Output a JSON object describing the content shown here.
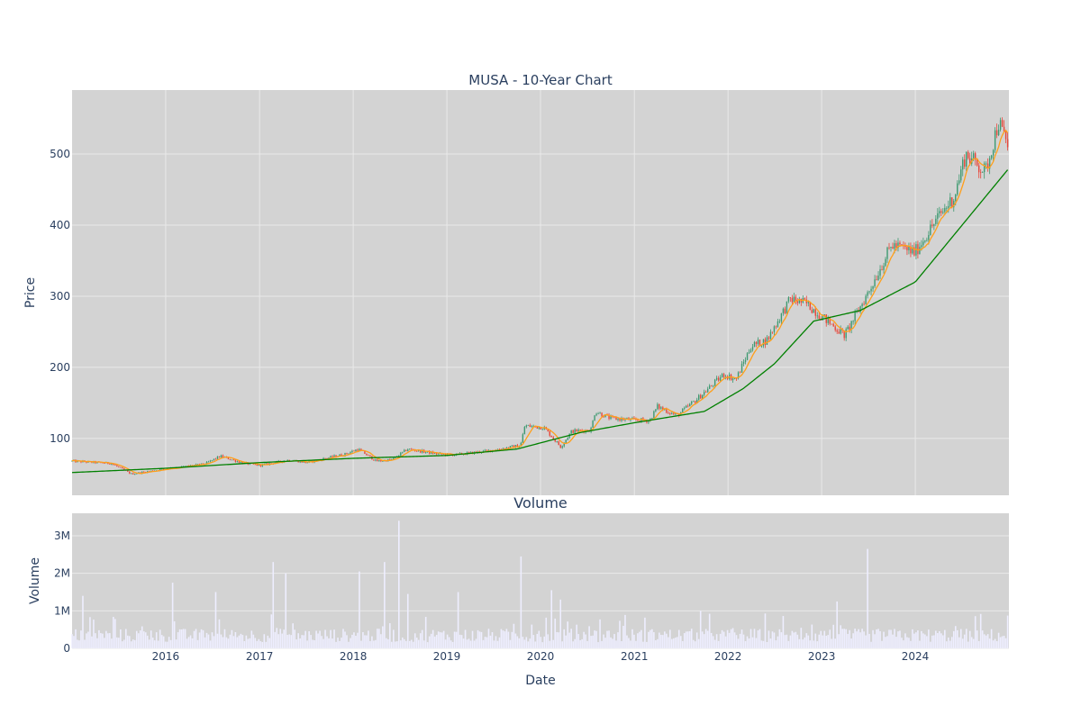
{
  "chart_data": [
    {
      "type": "candlestick",
      "title": "MUSA - 10-Year Chart",
      "xlabel": "",
      "ylabel": "Price",
      "x_range": [
        "2015-01-01",
        "2024-12-31"
      ],
      "ylim": [
        20,
        590
      ],
      "y_ticks": [
        100,
        200,
        300,
        400,
        500
      ],
      "x_ticks": [
        "2016",
        "2017",
        "2018",
        "2019",
        "2020",
        "2021",
        "2022",
        "2023",
        "2024"
      ],
      "grid": true,
      "legend": "none",
      "colors": {
        "plot_bg": "#d3d3d3",
        "grid": "#e9e9e9",
        "increasing": "#3d9970",
        "decreasing": "#e8463a",
        "ma_short": "#ff9f1a",
        "ma_long": "#008000"
      },
      "price_anchors": [
        [
          "2015-01-01",
          68
        ],
        [
          "2015-06-01",
          65
        ],
        [
          "2015-08-20",
          50
        ],
        [
          "2016-01-15",
          58
        ],
        [
          "2016-06-01",
          64
        ],
        [
          "2016-08-01",
          75
        ],
        [
          "2016-11-01",
          65
        ],
        [
          "2017-01-01",
          62
        ],
        [
          "2017-05-01",
          70
        ],
        [
          "2017-07-01",
          66
        ],
        [
          "2017-12-01",
          78
        ],
        [
          "2018-01-20",
          85
        ],
        [
          "2018-04-01",
          68
        ],
        [
          "2018-06-01",
          70
        ],
        [
          "2018-08-01",
          85
        ],
        [
          "2018-12-01",
          78
        ],
        [
          "2019-02-01",
          77
        ],
        [
          "2019-06-01",
          82
        ],
        [
          "2019-10-15",
          90
        ],
        [
          "2019-11-01",
          118
        ],
        [
          "2020-01-15",
          115
        ],
        [
          "2020-03-20",
          88
        ],
        [
          "2020-05-01",
          110
        ],
        [
          "2020-07-15",
          112
        ],
        [
          "2020-08-01",
          138
        ],
        [
          "2020-10-01",
          128
        ],
        [
          "2021-01-01",
          126
        ],
        [
          "2021-03-01",
          125
        ],
        [
          "2021-04-01",
          145
        ],
        [
          "2021-06-15",
          132
        ],
        [
          "2021-09-01",
          155
        ],
        [
          "2021-12-15",
          190
        ],
        [
          "2022-02-01",
          183
        ],
        [
          "2022-04-01",
          230
        ],
        [
          "2022-06-01",
          238
        ],
        [
          "2022-09-01",
          296
        ],
        [
          "2022-11-01",
          290
        ],
        [
          "2022-12-31",
          272
        ],
        [
          "2023-04-01",
          245
        ],
        [
          "2023-07-01",
          305
        ],
        [
          "2023-10-01",
          372
        ],
        [
          "2023-12-31",
          362
        ],
        [
          "2024-04-01",
          412
        ],
        [
          "2024-06-01",
          440
        ],
        [
          "2024-07-15",
          500
        ],
        [
          "2024-10-01",
          475
        ],
        [
          "2024-11-20",
          545
        ],
        [
          "2024-12-31",
          508
        ]
      ],
      "ma_long_anchors": [
        [
          "2015-01-01",
          52
        ],
        [
          "2016-01-01",
          58
        ],
        [
          "2017-01-01",
          66
        ],
        [
          "2018-01-01",
          72
        ],
        [
          "2019-01-01",
          76
        ],
        [
          "2019-10-01",
          85
        ],
        [
          "2020-06-01",
          108
        ],
        [
          "2021-01-01",
          122
        ],
        [
          "2021-10-01",
          138
        ],
        [
          "2022-03-01",
          170
        ],
        [
          "2022-07-01",
          205
        ],
        [
          "2022-12-01",
          265
        ],
        [
          "2023-06-01",
          280
        ],
        [
          "2024-01-01",
          320
        ],
        [
          "2024-12-31",
          480
        ]
      ]
    },
    {
      "type": "bar",
      "title": "Volume",
      "xlabel": "Date",
      "ylabel": "Volume",
      "ylim": [
        0,
        3600000
      ],
      "y_ticks": [
        0,
        1000000,
        2000000,
        3000000
      ],
      "y_tick_labels": [
        "0",
        "1M",
        "2M",
        "3M"
      ],
      "x_ticks": [
        "2016",
        "2017",
        "2018",
        "2019",
        "2020",
        "2021",
        "2022",
        "2023",
        "2024"
      ],
      "grid": true,
      "colors": {
        "bar": "#eeeeff",
        "plot_bg": "#d3d3d3",
        "grid": "#e9e9e9"
      },
      "base_volume": 330000,
      "spikes": [
        [
          "2015-02-10",
          1400000
        ],
        [
          "2016-01-28",
          1750000
        ],
        [
          "2016-07-15",
          1500000
        ],
        [
          "2017-02-20",
          2300000
        ],
        [
          "2017-04-10",
          2000000
        ],
        [
          "2018-01-25",
          2050000
        ],
        [
          "2018-05-05",
          2300000
        ],
        [
          "2018-06-29",
          3400000
        ],
        [
          "2018-08-01",
          1450000
        ],
        [
          "2019-02-15",
          1500000
        ],
        [
          "2019-10-20",
          2450000
        ],
        [
          "2020-02-10",
          1550000
        ],
        [
          "2020-03-20",
          1300000
        ],
        [
          "2021-09-15",
          1000000
        ],
        [
          "2023-03-01",
          1250000
        ],
        [
          "2023-06-28",
          2650000
        ]
      ]
    }
  ]
}
